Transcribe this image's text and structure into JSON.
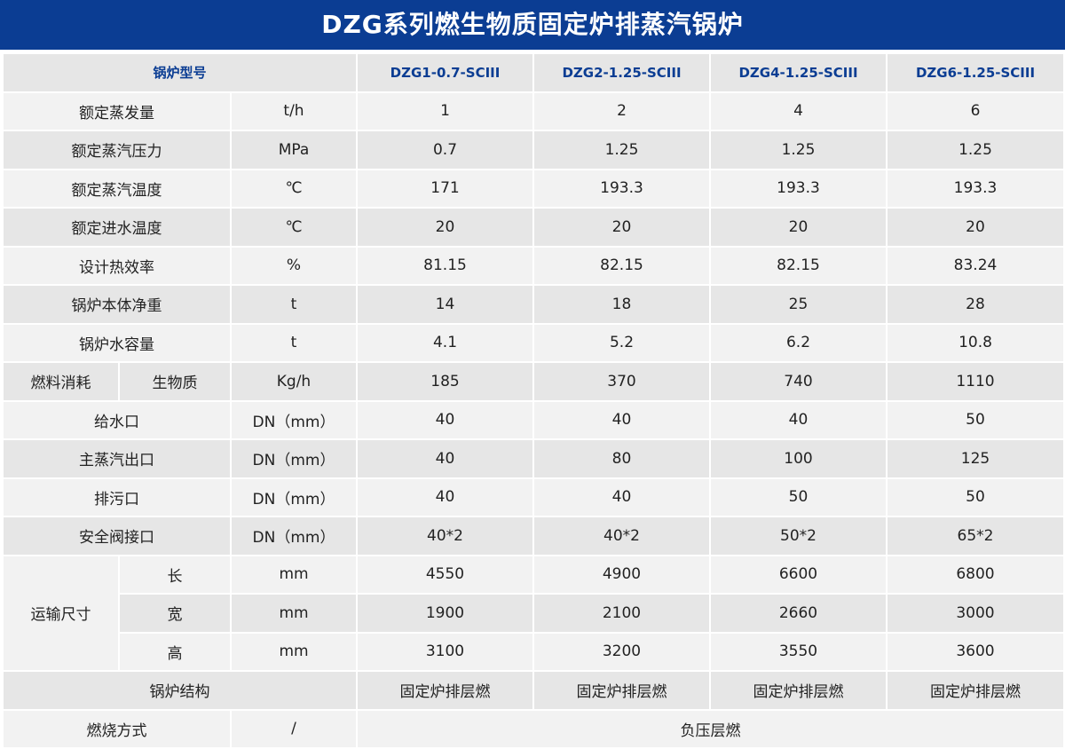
{
  "title": "DZG系列燃生物质固定炉排蒸汽锅炉",
  "header_row": {
    "label": "锅炉型号",
    "models": [
      "DZG1-0.7-SCIII",
      "DZG2-1.25-SCIII",
      "DZG4-1.25-SCIII",
      "DZG6-1.25-SCIII"
    ]
  },
  "rows": {
    "evaporation": {
      "label": "额定蒸发量",
      "unit": "t/h",
      "values": [
        "1",
        "2",
        "4",
        "6"
      ]
    },
    "pressure": {
      "label": "额定蒸汽压力",
      "unit": "MPa",
      "values": [
        "0.7",
        "1.25",
        "1.25",
        "1.25"
      ]
    },
    "steam_temp": {
      "label": "额定蒸汽温度",
      "unit": "℃",
      "values": [
        "171",
        "193.3",
        "193.3",
        "193.3"
      ]
    },
    "water_temp": {
      "label": "额定进水温度",
      "unit": "℃",
      "values": [
        "20",
        "20",
        "20",
        "20"
      ]
    },
    "efficiency": {
      "label": "设计热效率",
      "unit": "%",
      "values": [
        "81.15",
        "82.15",
        "82.15",
        "83.24"
      ]
    },
    "net_weight": {
      "label": "锅炉本体净重",
      "unit": "t",
      "values": [
        "14",
        "18",
        "25",
        "28"
      ]
    },
    "water_capacity": {
      "label": "锅炉水容量",
      "unit": "t",
      "values": [
        "4.1",
        "5.2",
        "6.2",
        "10.8"
      ]
    },
    "fuel": {
      "group": "燃料消耗",
      "label": "生物质",
      "unit": "Kg/h",
      "values": [
        "185",
        "370",
        "740",
        "1110"
      ]
    },
    "water_inlet": {
      "label": "给水口",
      "unit": "DN（mm）",
      "values": [
        "40",
        "40",
        "40",
        "50"
      ]
    },
    "steam_outlet": {
      "label": "主蒸汽出口",
      "unit": "DN（mm）",
      "values": [
        "40",
        "80",
        "100",
        "125"
      ]
    },
    "drain": {
      "label": "排污口",
      "unit": "DN（mm）",
      "values": [
        "40",
        "40",
        "50",
        "50"
      ]
    },
    "safety_valve": {
      "label": "安全阀接口",
      "unit": "DN（mm）",
      "values": [
        "40*2",
        "40*2",
        "50*2",
        "65*2"
      ]
    },
    "transport": {
      "group": "运输尺寸",
      "length": {
        "label": "长",
        "unit": "mm",
        "values": [
          "4550",
          "4900",
          "6600",
          "6800"
        ]
      },
      "width": {
        "label": "宽",
        "unit": "mm",
        "values": [
          "1900",
          "2100",
          "2660",
          "3000"
        ]
      },
      "height": {
        "label": "高",
        "unit": "mm",
        "values": [
          "3100",
          "3200",
          "3550",
          "3600"
        ]
      }
    },
    "structure": {
      "label": "锅炉结构",
      "values": [
        "固定炉排层燃",
        "固定炉排层燃",
        "固定炉排层燃",
        "固定炉排层燃"
      ]
    },
    "combustion": {
      "label": "燃烧方式",
      "unit": "/",
      "value": "负压层燃"
    }
  }
}
